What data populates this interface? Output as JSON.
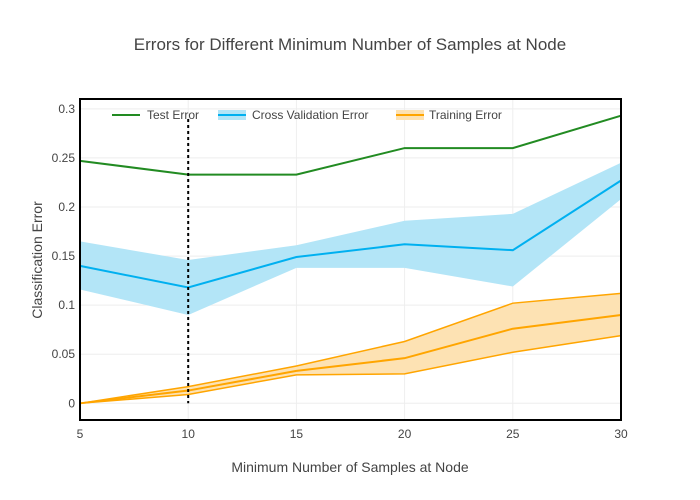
{
  "chart_data": {
    "type": "line",
    "title": "Errors for Different Minimum Number of Samples at Node",
    "xlabel": "Minimum Number of Samples at Node",
    "ylabel": "Classification Error",
    "xlim": [
      5,
      30
    ],
    "ylim": [
      -0.017,
      0.31
    ],
    "x_ticks": [
      5,
      10,
      15,
      20,
      25,
      30
    ],
    "y_ticks": [
      0,
      0.05,
      0.1,
      0.15,
      0.2,
      0.25,
      0.3
    ],
    "x_tick_labels": [
      "5",
      "10",
      "15",
      "20",
      "25",
      "30"
    ],
    "y_tick_labels": [
      "0",
      "0.05",
      "0.1",
      "0.15",
      "0.2",
      "0.25",
      "0.3"
    ],
    "grid": true,
    "legend_position": "top-left",
    "x": [
      5,
      10,
      15,
      20,
      25,
      30
    ],
    "series": [
      {
        "name": "Test Error",
        "color": "#228b22",
        "values": [
          0.247,
          0.233,
          0.233,
          0.26,
          0.26,
          0.293
        ]
      },
      {
        "name": "Cross Validation Error",
        "color": "#00b0f0",
        "band_color": "#b3e5f7",
        "values": [
          0.14,
          0.118,
          0.149,
          0.162,
          0.156,
          0.227
        ],
        "lower": [
          0.116,
          0.09,
          0.138,
          0.138,
          0.119,
          0.208
        ],
        "upper": [
          0.165,
          0.146,
          0.161,
          0.186,
          0.193,
          0.245
        ]
      },
      {
        "name": "Training Error",
        "color": "#ffa500",
        "band_color": "#fde2b3",
        "values": [
          0,
          0.013,
          0.033,
          0.046,
          0.076,
          0.09
        ],
        "lower": [
          0,
          0.009,
          0.029,
          0.03,
          0.052,
          0.069
        ],
        "upper": [
          0,
          0.017,
          0.038,
          0.063,
          0.102,
          0.112
        ]
      }
    ],
    "vertical_marker_x": 10
  }
}
